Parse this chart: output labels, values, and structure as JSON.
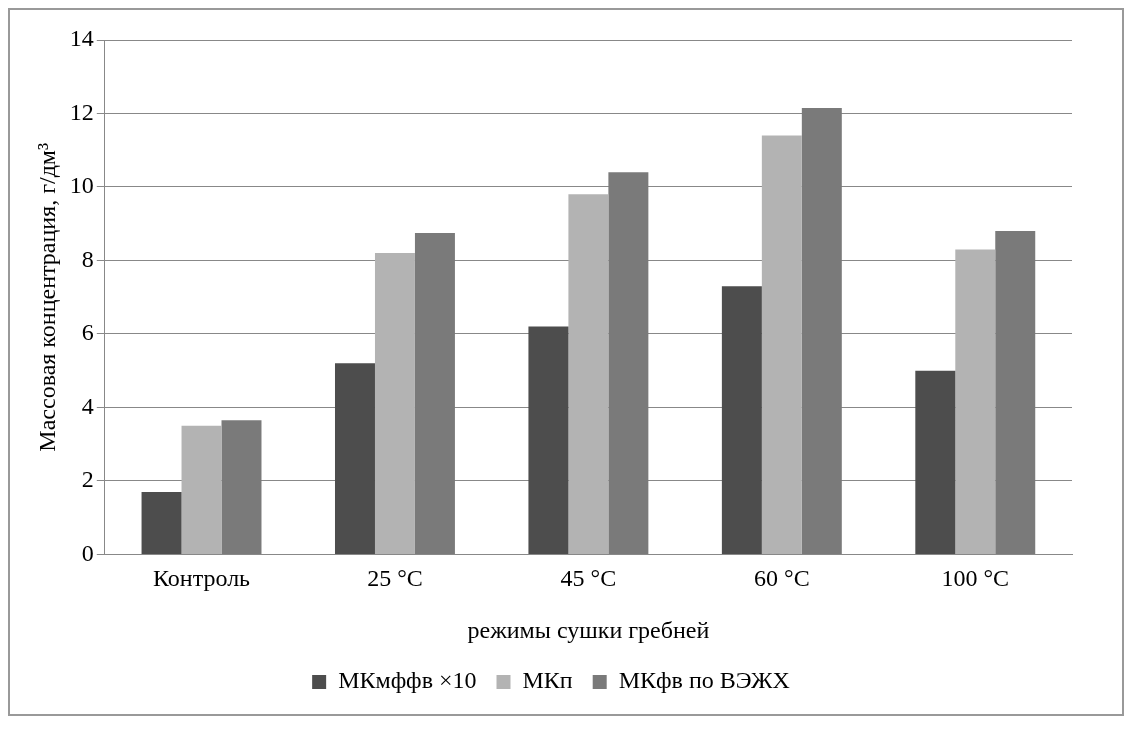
{
  "chart_data": {
    "type": "bar",
    "xlabel": "режимы сушки гребней",
    "ylabel": "Массовая концентрация, г/дм³",
    "categories": [
      "Контроль",
      "25 °C",
      "45 °C",
      "60 °C",
      "100 °C"
    ],
    "series": [
      {
        "name": "МКмффв ×10",
        "color": "#4d4d4d",
        "values": [
          1.7,
          5.2,
          6.2,
          7.3,
          5.0
        ]
      },
      {
        "name": "МКп",
        "color": "#b3b3b3",
        "values": [
          3.5,
          8.2,
          9.8,
          11.4,
          8.3
        ]
      },
      {
        "name": "МКфв по ВЭЖХ",
        "color": "#7a7a7a",
        "values": [
          3.65,
          8.75,
          10.4,
          12.15,
          8.8
        ]
      }
    ],
    "ylim": [
      0,
      14
    ],
    "yticks": [
      0,
      2,
      4,
      6,
      8,
      10,
      12,
      14
    ],
    "grid": "y",
    "legend": "bottom"
  }
}
